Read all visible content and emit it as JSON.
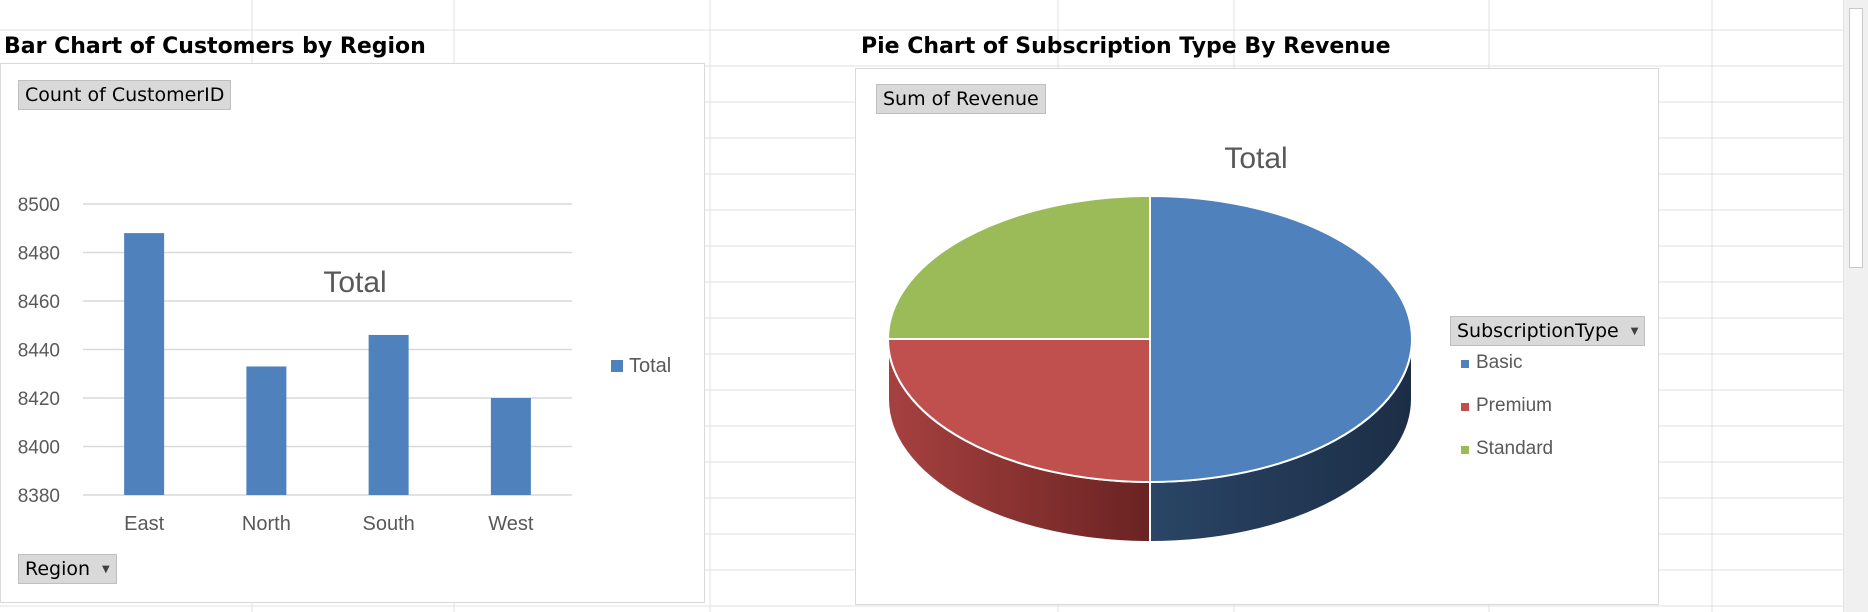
{
  "sheet": {
    "bar_heading": "Bar Chart of Customers by Region",
    "pie_heading": "Pie Chart of Subscription Type By Revenue"
  },
  "bar_panel": {
    "value_field": "Count of CustomerID",
    "axis_field": "Region",
    "legend_label": "Total",
    "bar_color": "#4f81bd"
  },
  "pie_panel": {
    "value_field": "Sum of Revenue",
    "legend_field": "SubscriptionType"
  },
  "chart_data": [
    {
      "type": "bar",
      "title": "Total",
      "categories": [
        "East",
        "North",
        "South",
        "West"
      ],
      "series": [
        {
          "name": "Total",
          "values": [
            8488,
            8433,
            8446,
            8420
          ]
        }
      ],
      "ylim": [
        8380,
        8500
      ],
      "yticks": [
        8380,
        8400,
        8420,
        8440,
        8460,
        8480,
        8500
      ],
      "xlabel": "",
      "ylabel": "",
      "grid": true,
      "legend": "right"
    },
    {
      "type": "pie",
      "title": "Total",
      "labels": [
        "Basic",
        "Premium",
        "Standard"
      ],
      "values": [
        50,
        25,
        25
      ],
      "colors": [
        "#4f81bd",
        "#c0504d",
        "#9bbb59"
      ],
      "legend": "right"
    }
  ]
}
